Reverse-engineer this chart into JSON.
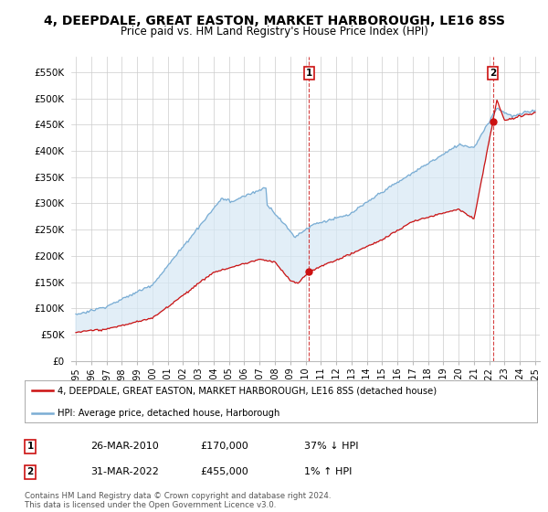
{
  "title": "4, DEEPDALE, GREAT EASTON, MARKET HARBOROUGH, LE16 8SS",
  "subtitle": "Price paid vs. HM Land Registry's House Price Index (HPI)",
  "title_fontsize": 10,
  "subtitle_fontsize": 8.5,
  "ylabel_ticks": [
    "£0",
    "£50K",
    "£100K",
    "£150K",
    "£200K",
    "£250K",
    "£300K",
    "£350K",
    "£400K",
    "£450K",
    "£500K",
    "£550K"
  ],
  "ytick_values": [
    0,
    50000,
    100000,
    150000,
    200000,
    250000,
    300000,
    350000,
    400000,
    450000,
    500000,
    550000
  ],
  "ylim": [
    0,
    580000
  ],
  "xlim_start": 1994.7,
  "xlim_end": 2025.3,
  "hpi_color": "#7aadd4",
  "hpi_fill_color": "#d6e8f5",
  "price_color": "#cc1111",
  "dashed_line_color": "#cc1111",
  "transaction1": {
    "date": "26-MAR-2010",
    "price": 170000,
    "year": 2010.23,
    "label": "1",
    "note": "37% ↓ HPI"
  },
  "transaction2": {
    "date": "31-MAR-2022",
    "price": 455000,
    "year": 2022.23,
    "label": "2",
    "note": "1% ↑ HPI"
  },
  "legend_line1": "4, DEEPDALE, GREAT EASTON, MARKET HARBOROUGH, LE16 8SS (detached house)",
  "legend_line2": "HPI: Average price, detached house, Harborough",
  "footer": "Contains HM Land Registry data © Crown copyright and database right 2024.\nThis data is licensed under the Open Government Licence v3.0.",
  "background_color": "#ffffff",
  "grid_color": "#cccccc"
}
